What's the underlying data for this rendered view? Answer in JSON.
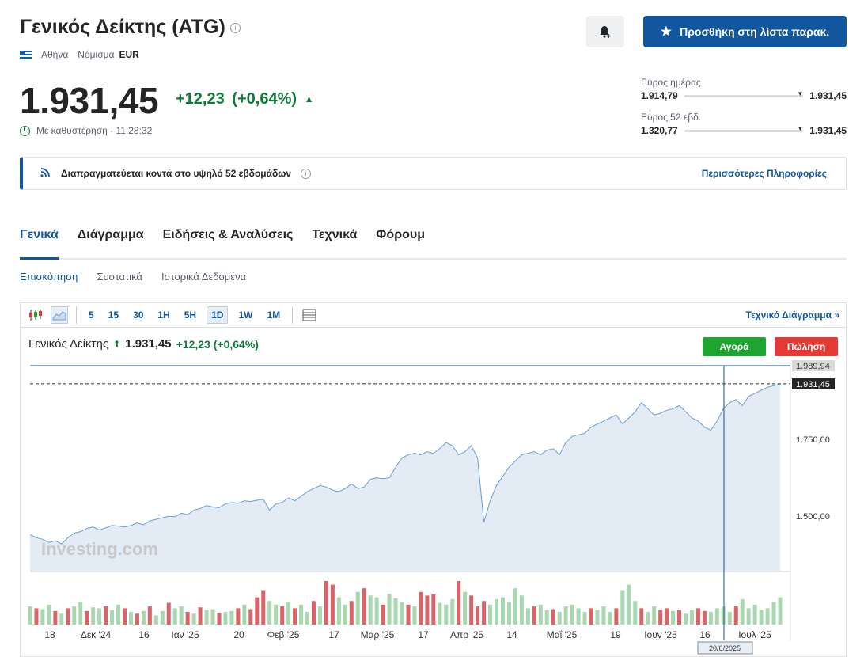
{
  "header": {
    "title": "Γενικός Δείκτης (ATG)",
    "info_icon": "info-icon",
    "exchange": "Αθήνα",
    "currency_label": "Νόμισμα",
    "currency": "EUR",
    "watchlist_label": "Προσθήκη στη λίστα παρακ.",
    "bell_icon": "bell-plus-icon",
    "star_icon": "star-icon"
  },
  "quote": {
    "price": "1.931,45",
    "change": "+12,23",
    "change_pct": "(+0,64%)",
    "delay_text": "Με καθυστέρηση · 11:28:32"
  },
  "ranges": {
    "day": {
      "label": "Εύρος ημέρας",
      "low": "1.914,79",
      "high": "1.931,45"
    },
    "week52": {
      "label": "Εύρος 52 εβδ.",
      "low": "1.320,77",
      "high": "1.931,45"
    }
  },
  "banner": {
    "text": "Διαπραγματεύεται κοντά στο υψηλό 52 εβδομάδων",
    "more": "Περισσότερες Πληροφορίες"
  },
  "tabs": [
    "Γενικά",
    "Διάγραμμα",
    "Ειδήσεις & Αναλύσεις",
    "Τεχνικά",
    "Φόρουμ"
  ],
  "subtabs": [
    "Επισκόπηση",
    "Συστατικά",
    "Ιστορικά Δεδομένα"
  ],
  "toolbar": {
    "timeframes": [
      "5",
      "15",
      "30",
      "1H",
      "5H",
      "1D",
      "1W",
      "1M"
    ],
    "active_timeframe": "1D",
    "technical_chart": "Τεχνικό Διάγραμμα »"
  },
  "chart_legend": {
    "name": "Γενικός Δείκτης",
    "price": "1.931,45",
    "change": "+12,23 (+0,64%)",
    "buy": "Αγορά",
    "sell": "Πώληση"
  },
  "colors": {
    "accent": "#1256a0",
    "up": "#0e7c3a",
    "buy": "#1da431",
    "sell": "#e53935",
    "area_fill": "#e3ebf4",
    "line": "#6c9dd0"
  },
  "chart_data": {
    "type": "area",
    "y_ticks": [
      "1.500,00",
      "1.750,00"
    ],
    "price_labels": {
      "max": "1.989,94",
      "last": "1.931,45"
    },
    "x_labels": [
      "18",
      "Δεκ '24",
      "16",
      "Ιαν '25",
      "20",
      "Φεβ '25",
      "17",
      "Μαρ '25",
      "17",
      "Απρ '25",
      "14",
      "Μαΐ '25",
      "19",
      "Ιουν '25",
      "16",
      "Ιουλ '25"
    ],
    "crosshair_label": "20/6/2025",
    "watermark": "Investing.com",
    "ylim": [
      1320,
      1990
    ],
    "close": [
      1440,
      1430,
      1425,
      1415,
      1420,
      1410,
      1430,
      1445,
      1450,
      1460,
      1465,
      1455,
      1462,
      1470,
      1468,
      1465,
      1470,
      1478,
      1472,
      1485,
      1490,
      1495,
      1500,
      1498,
      1510,
      1505,
      1520,
      1525,
      1535,
      1530,
      1528,
      1540,
      1545,
      1542,
      1550,
      1548,
      1552,
      1555,
      1520,
      1540,
      1545,
      1560,
      1550,
      1565,
      1580,
      1590,
      1600,
      1595,
      1585,
      1580,
      1590,
      1605,
      1590,
      1595,
      1620,
      1625,
      1622,
      1625,
      1660,
      1690,
      1700,
      1705,
      1700,
      1710,
      1705,
      1720,
      1740,
      1730,
      1700,
      1710,
      1730,
      1690,
      1480,
      1550,
      1600,
      1630,
      1660,
      1680,
      1700,
      1705,
      1710,
      1700,
      1715,
      1720,
      1700,
      1740,
      1760,
      1765,
      1770,
      1790,
      1800,
      1810,
      1820,
      1830,
      1800,
      1820,
      1840,
      1870,
      1850,
      1830,
      1835,
      1845,
      1850,
      1860,
      1840,
      1820,
      1810,
      1790,
      1780,
      1810,
      1850,
      1870,
      1880,
      1860,
      1890,
      1900,
      1910,
      1920,
      1925,
      1931
    ],
    "volume": [
      20,
      18,
      17,
      22,
      15,
      12,
      18,
      20,
      25,
      15,
      19,
      18,
      20,
      16,
      22,
      18,
      14,
      12,
      15,
      20,
      10,
      15,
      24,
      18,
      20,
      14,
      12,
      19,
      16,
      17,
      13,
      14,
      15,
      18,
      22,
      17,
      30,
      38,
      26,
      22,
      20,
      25,
      18,
      22,
      14,
      26,
      20,
      48,
      44,
      30,
      22,
      26,
      36,
      40,
      32,
      30,
      22,
      34,
      29,
      25,
      22,
      20,
      36,
      32,
      34,
      24,
      22,
      28,
      48,
      36,
      32,
      20,
      26,
      22,
      28,
      30,
      25,
      40,
      32,
      18,
      20,
      22,
      16,
      17,
      14,
      20,
      22,
      18,
      14,
      18,
      16,
      20,
      14,
      18,
      38,
      44,
      26,
      18,
      14,
      20,
      16,
      18,
      15,
      16,
      12,
      16,
      18,
      15,
      14,
      18,
      20,
      14,
      20,
      28,
      18,
      22,
      16,
      18,
      25,
      30
    ],
    "volume_up": [
      1,
      0,
      1,
      1,
      0,
      1,
      0,
      1,
      1,
      0,
      1,
      1,
      0,
      1,
      1,
      0,
      1,
      0,
      1,
      0,
      1,
      1,
      0,
      1,
      1,
      0,
      1,
      0,
      1,
      1,
      0,
      1,
      1,
      0,
      1,
      0,
      0,
      0,
      1,
      1,
      0,
      1,
      0,
      1,
      1,
      0,
      1,
      0,
      0,
      1,
      1,
      0,
      1,
      0,
      1,
      1,
      0,
      1,
      1,
      1,
      0,
      1,
      0,
      0,
      0,
      1,
      1,
      1,
      0,
      1,
      0,
      0,
      0,
      1,
      1,
      1,
      1,
      1,
      1,
      1,
      0,
      1,
      1,
      0,
      1,
      1,
      1,
      1,
      1,
      0,
      1,
      1,
      1,
      0,
      1,
      1,
      1,
      0,
      1,
      1,
      0,
      0,
      1,
      0,
      1,
      1,
      0,
      0,
      1,
      1,
      1,
      1,
      0,
      1,
      1,
      1,
      1,
      1,
      1,
      1
    ]
  }
}
